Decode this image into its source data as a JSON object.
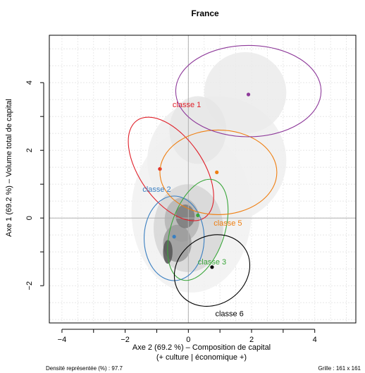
{
  "chart_data": {
    "type": "scatter",
    "title": "France",
    "xlabel_lines": [
      "Axe 2 (69.2 %) – Composition de capital",
      "(+ culture | économique +)"
    ],
    "ylabel": "Axe 1 (69.2 %) – Volume total de capital",
    "footer_left": "Densité représentée (%) : 97.7",
    "footer_right": "Grille : 161 x 161",
    "xlim": [
      -4.4,
      5.3
    ],
    "ylim": [
      -3.1,
      5.4
    ],
    "x_ticks": [
      -4,
      -2,
      0,
      2,
      4
    ],
    "y_ticks": [
      -2,
      0,
      2,
      4
    ],
    "grid": true,
    "reference_lines": {
      "x": 0,
      "y": 0
    },
    "series": [
      {
        "name": "classe 1",
        "color": "#e0202a",
        "center": [
          -0.9,
          1.45
        ],
        "ellipse": {
          "cx": -0.55,
          "cy": 1.45,
          "rx": 1.0,
          "ry": 1.75,
          "rotate": 35
        },
        "label_pos": [
          -0.05,
          3.27
        ]
      },
      {
        "name": "classe 2",
        "color": "#3a7fc1",
        "center": [
          -0.45,
          -0.55
        ],
        "ellipse": {
          "cx": -0.45,
          "cy": -0.6,
          "rx": 0.95,
          "ry": 1.25,
          "rotate": 0
        },
        "label_pos": [
          -1.0,
          0.77
        ]
      },
      {
        "name": "classe 3",
        "color": "#3aa63a",
        "center": [
          0.3,
          0.08
        ],
        "ellipse": {
          "cx": 0.3,
          "cy": -0.35,
          "rx": 0.85,
          "ry": 1.55,
          "rotate": -18
        },
        "label_pos": [
          0.75,
          -1.37
        ]
      },
      {
        "name": "classe 5",
        "color": "#ef7f12",
        "center": [
          0.9,
          1.35
        ],
        "ellipse": {
          "cx": 0.95,
          "cy": 1.35,
          "rx": 1.85,
          "ry": 1.25,
          "rotate": 0
        },
        "label_pos": [
          1.25,
          -0.23
        ]
      },
      {
        "name": "classe 6",
        "color": "#000000",
        "center": [
          0.75,
          -1.45
        ],
        "ellipse": {
          "cx": 0.75,
          "cy": -1.55,
          "rx": 1.25,
          "ry": 1.0,
          "rotate": 35
        },
        "label_pos": [
          1.3,
          -2.9
        ]
      },
      {
        "name": "",
        "color": "#8e3a9a",
        "center": [
          1.9,
          3.65
        ],
        "ellipse": {
          "cx": 1.9,
          "cy": 3.75,
          "rx": 2.3,
          "ry": 1.35,
          "rotate": 0
        },
        "label_pos": null
      }
    ],
    "density_blobs": [
      {
        "cx": 0.1,
        "cy": 0.2,
        "rx": 1.9,
        "ry": 2.4,
        "shade": "#f1f1f1"
      },
      {
        "cx": 0.9,
        "cy": 1.7,
        "rx": 2.2,
        "ry": 1.9,
        "shade": "#eeeeee"
      },
      {
        "cx": 1.8,
        "cy": 3.7,
        "rx": 1.3,
        "ry": 1.2,
        "shade": "#ebebeb"
      },
      {
        "cx": 0.3,
        "cy": 2.6,
        "rx": 0.9,
        "ry": 1.0,
        "shade": "#e6e6e6"
      },
      {
        "cx": 0.0,
        "cy": -0.3,
        "rx": 1.1,
        "ry": 1.3,
        "shade": "#d6d6d6"
      },
      {
        "cx": -0.2,
        "cy": -0.05,
        "rx": 0.55,
        "ry": 0.65,
        "shade": "#b5b5b5"
      },
      {
        "cx": -0.35,
        "cy": -0.75,
        "rx": 0.45,
        "ry": 0.55,
        "shade": "#9a9a9a"
      },
      {
        "cx": -0.1,
        "cy": 0.05,
        "rx": 0.3,
        "ry": 0.35,
        "shade": "#7a7a7a"
      },
      {
        "cx": -0.65,
        "cy": -1.0,
        "rx": 0.15,
        "ry": 0.35,
        "shade": "#555555"
      }
    ]
  }
}
